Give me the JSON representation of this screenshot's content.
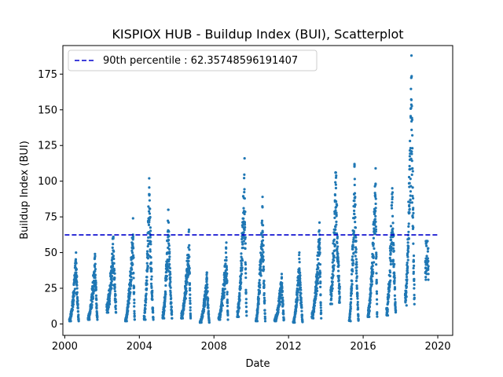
{
  "chart_data": {
    "type": "scatter",
    "title": "KISPIOX HUB - Buildup Index (BUI), Scatterplot",
    "xlabel": "Date",
    "ylabel": "Buildup Index (BUI)",
    "xlim": [
      1999.9,
      2020.8
    ],
    "ylim": [
      -8,
      195
    ],
    "x_ticks": [
      2000,
      2004,
      2008,
      2012,
      2016,
      2020
    ],
    "y_ticks": [
      0,
      25,
      50,
      75,
      100,
      125,
      150,
      175
    ],
    "grid": false,
    "legend_position": "top-left",
    "point_color": "#1f77b4",
    "threshold": {
      "label": "90th percentile : 62.35748596191407",
      "value": 62.35748596191407,
      "color": "#0000cd"
    },
    "season_summaries": [
      {
        "year": 2000,
        "start": "2000-04",
        "end": "2000-10",
        "min": 2,
        "max": 50
      },
      {
        "year": 2001,
        "start": "2001-04",
        "end": "2001-10",
        "min": 3,
        "max": 49
      },
      {
        "year": 2002,
        "start": "2002-04",
        "end": "2002-10",
        "min": 8,
        "max": 61
      },
      {
        "year": 2003,
        "start": "2003-04",
        "end": "2003-10",
        "min": 2,
        "max": 74
      },
      {
        "year": 2004,
        "start": "2004-04",
        "end": "2004-10",
        "min": 3,
        "max": 102
      },
      {
        "year": 2005,
        "start": "2005-04",
        "end": "2005-10",
        "min": 4,
        "max": 80
      },
      {
        "year": 2006,
        "start": "2006-04",
        "end": "2006-10",
        "min": 4,
        "max": 66
      },
      {
        "year": 2007,
        "start": "2007-04",
        "end": "2007-10",
        "min": 1,
        "max": 36
      },
      {
        "year": 2008,
        "start": "2008-04",
        "end": "2008-10",
        "min": 3,
        "max": 57
      },
      {
        "year": 2009,
        "start": "2009-04",
        "end": "2009-10",
        "min": 5,
        "max": 116
      },
      {
        "year": 2010,
        "start": "2010-04",
        "end": "2010-10",
        "min": 2,
        "max": 89
      },
      {
        "year": 2011,
        "start": "2011-04",
        "end": "2011-10",
        "min": 2,
        "max": 35
      },
      {
        "year": 2012,
        "start": "2012-04",
        "end": "2012-10",
        "min": 1,
        "max": 50
      },
      {
        "year": 2013,
        "start": "2013-04",
        "end": "2013-10",
        "min": 4,
        "max": 71
      },
      {
        "year": 2014,
        "start": "2014-04",
        "end": "2014-10",
        "min": 14,
        "max": 106
      },
      {
        "year": 2015,
        "start": "2015-04",
        "end": "2015-10",
        "min": 2,
        "max": 112
      },
      {
        "year": 2016,
        "start": "2016-04",
        "end": "2016-10",
        "min": 5,
        "max": 109
      },
      {
        "year": 2017,
        "start": "2017-04",
        "end": "2017-10",
        "min": 6,
        "max": 95
      },
      {
        "year": 2018,
        "start": "2018-04",
        "end": "2018-10",
        "min": 13,
        "max": 188
      },
      {
        "year": 2019,
        "start": "2019-05",
        "end": "2019-07",
        "min": 31,
        "max": 58
      }
    ]
  }
}
